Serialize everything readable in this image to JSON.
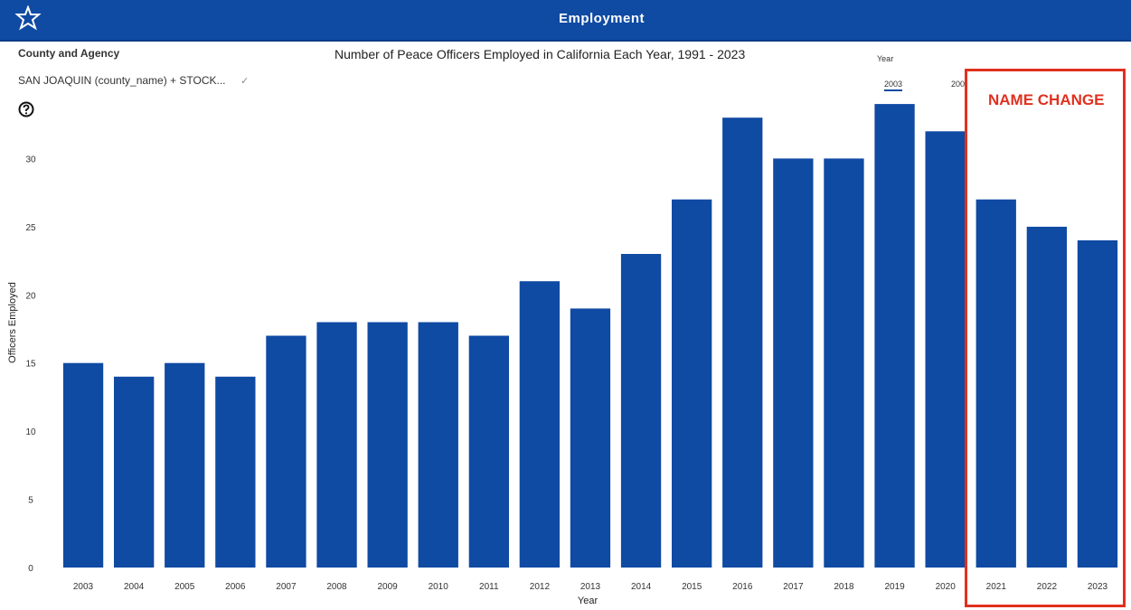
{
  "header": {
    "title": "Employment"
  },
  "slicer": {
    "title": "County and Agency",
    "value": "SAN JOAQUIN (county_name) + STOCK...",
    "chevron": "✓"
  },
  "legend": {
    "title": "Year",
    "items": [
      "2003",
      "200"
    ]
  },
  "annotation": {
    "label": "NAME CHANGE",
    "color": "#e0311f"
  },
  "colors": {
    "header": "#0f4aa3",
    "bar": "#0f4aa3"
  },
  "chart_data": {
    "type": "bar",
    "title": "Number of Peace Officers Employed in California Each Year, 1991 - 2023",
    "xlabel": "Year",
    "ylabel": "Officers Employed",
    "categories": [
      "2003",
      "2004",
      "2005",
      "2006",
      "2007",
      "2008",
      "2009",
      "2010",
      "2011",
      "2012",
      "2013",
      "2014",
      "2015",
      "2016",
      "2017",
      "2018",
      "2019",
      "2020",
      "2021",
      "2022",
      "2023"
    ],
    "values": [
      15,
      14,
      15,
      14,
      17,
      18,
      18,
      18,
      17,
      21,
      19,
      23,
      27,
      33,
      30,
      30,
      34,
      32,
      27,
      25,
      24
    ],
    "yticks": [
      "0",
      "5",
      "10",
      "15",
      "20",
      "25",
      "30"
    ],
    "ylim": [
      0,
      35
    ],
    "grid": false,
    "legend_position": "top-right"
  }
}
